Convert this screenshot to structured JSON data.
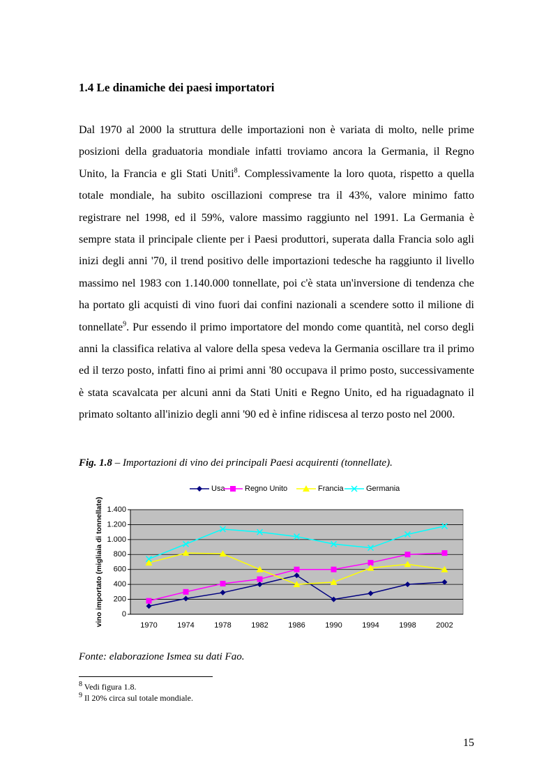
{
  "heading": "1.4 Le dinamiche dei paesi importatori",
  "paragraph": [
    "Dal 1970 al 2000 la struttura delle importazioni non è variata di molto, nelle prime posizioni della graduatoria mondiale infatti troviamo ancora la Germania, il Regno Unito, la Francia e gli Stati Uniti",
    "8",
    ". Complessivamente la loro quota, rispetto a quella totale mondiale, ha subito oscillazioni comprese tra il 43%, valore minimo fatto registrare nel 1998, ed il 59%, valore massimo raggiunto nel 1991. La Germania è sempre stata il principale cliente per i Paesi produttori, superata dalla Francia solo agli inizi degli anni '70, il trend positivo delle importazioni tedesche ha raggiunto il livello massimo nel 1983 con 1.140.000 tonnellate, poi c'è stata un'inversione di tendenza che ha portato gli acquisti di vino fuori dai confini nazionali a scendere sotto il milione di tonnellate",
    "9",
    ". Pur essendo il primo importatore del mondo come quantità, nel corso degli anni la classifica relativa al valore della spesa vedeva la Germania oscillare tra il primo ed il terzo posto, infatti fino ai primi anni '80 occupava il primo posto, successivamente è stata scavalcata per alcuni anni da Stati Uniti e Regno Unito, ed ha riguadagnato il primato soltanto all'inizio degli anni '90 ed è infine ridiscesa al terzo posto nel 2000."
  ],
  "figure_caption": {
    "label": "Fig. 1.8",
    "text": " – Importazioni di vino dei principali Paesi acquirenti (tonnellate)."
  },
  "chart_data": {
    "type": "line",
    "y_label": "vino importato (migliaia di tonnellate)",
    "categories": [
      "1970",
      "1974",
      "1978",
      "1982",
      "1986",
      "1990",
      "1994",
      "1998",
      "2002"
    ],
    "series": [
      {
        "name": "Usa",
        "color": "#000080",
        "marker": "diamond",
        "values": [
          110,
          210,
          290,
          400,
          520,
          200,
          280,
          400,
          430
        ]
      },
      {
        "name": "Regno Unito",
        "color": "#ff00ff",
        "marker": "square",
        "values": [
          180,
          300,
          410,
          470,
          600,
          600,
          690,
          800,
          820
        ]
      },
      {
        "name": "Francia",
        "color": "#ffff00",
        "marker": "triangle",
        "values": [
          690,
          820,
          810,
          600,
          400,
          430,
          620,
          670,
          600
        ]
      },
      {
        "name": "Germania",
        "color": "#00ffff",
        "marker": "x",
        "values": [
          740,
          940,
          1140,
          1100,
          1040,
          940,
          890,
          1070,
          1180
        ]
      }
    ],
    "ylim": [
      0,
      1400
    ],
    "yticks": [
      0,
      200,
      400,
      600,
      800,
      {
        "value": 1000,
        "label": "1.000"
      },
      {
        "value": 1200,
        "label": "1.200"
      },
      {
        "value": 1400,
        "label": "1.400"
      }
    ],
    "grid": true,
    "legend": "top"
  },
  "source": "Fonte: elaborazione Ismea su dati Fao.",
  "footnotes": [
    {
      "number": "8",
      "text": "Vedi figura 1.8."
    },
    {
      "number": "9",
      "text": "Il 20% circa sul totale mondiale."
    }
  ],
  "page_number": "15"
}
